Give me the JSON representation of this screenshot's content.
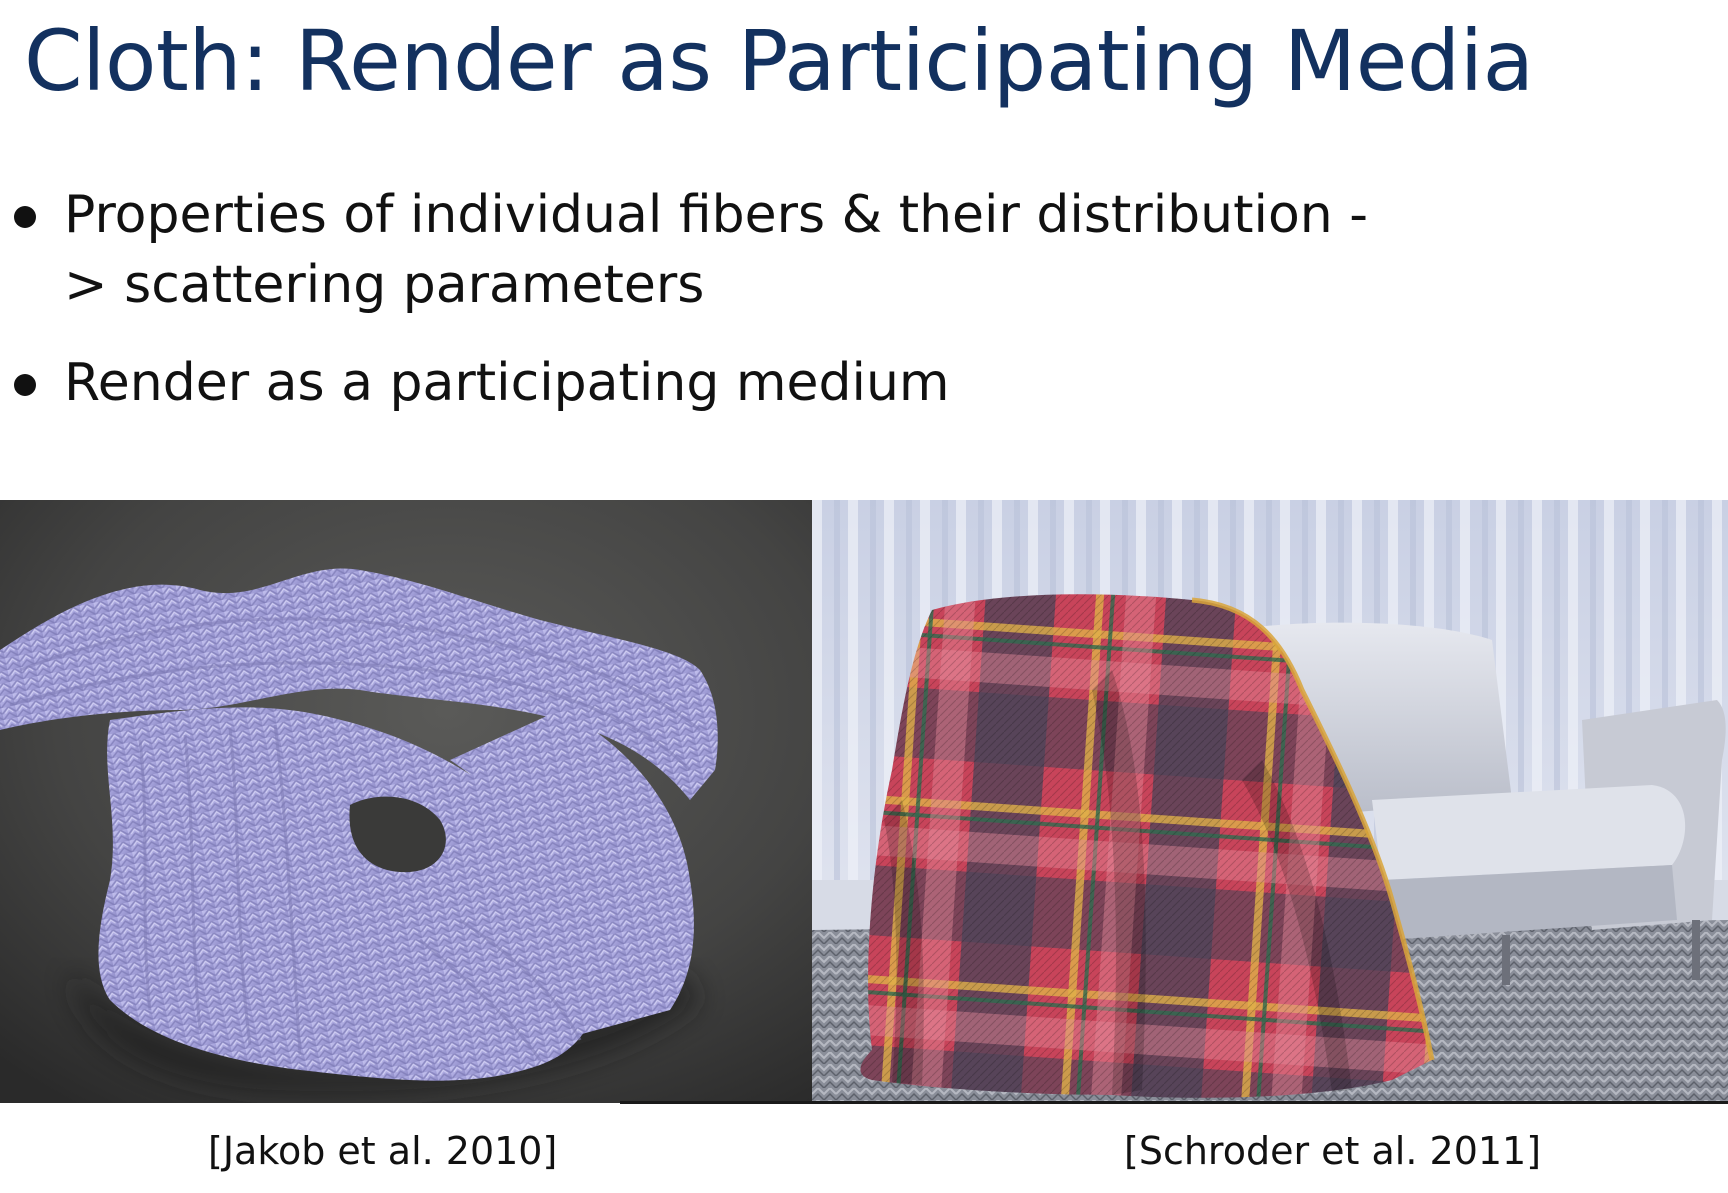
{
  "slide": {
    "title": "Cloth: Render as Participating Media",
    "bullets": [
      "Properties of individual fibers & their distribution -> scattering parameters",
      "Render as a participating medium"
    ]
  },
  "figures": [
    {
      "caption": "[Jakob et al. 2010]",
      "icon": "knitted-scarf-render"
    },
    {
      "caption": "[Schroder et al. 2011]",
      "icon": "plaid-blanket-on-sofa-render"
    }
  ],
  "colors": {
    "title": "#13315f",
    "text": "#111111",
    "scarf": "#a9a6e0",
    "floor": "#4a4a4a"
  }
}
